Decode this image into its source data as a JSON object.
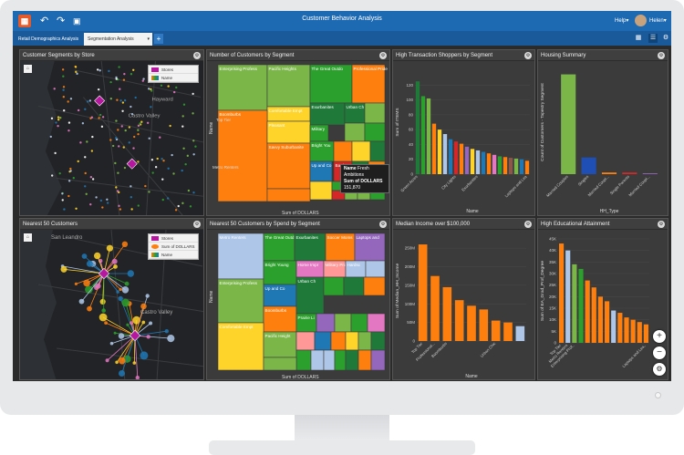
{
  "app": {
    "title": "Customer Behavior Analysis",
    "help_label": "Help",
    "user_label": "Helen",
    "accent": "#1d6ab3"
  },
  "tabs": [
    {
      "label": "Retail Demographics Analysis"
    },
    {
      "label": "Segmentation Analysis",
      "active": true
    }
  ],
  "panels": {
    "p1": {
      "title": "Customer Segments by Store",
      "legend": [
        "Stores",
        "Name"
      ],
      "place_labels": [
        "Hayward",
        "Castro Valley"
      ]
    },
    "p2": {
      "title": "Number of Customers by Segment",
      "ylabel": "Name",
      "xlabel": "Sum of DOLLARS"
    },
    "p3": {
      "title": "High Transaction Shoppers by Segment",
      "ylabel": "Sum of ITEMS",
      "xlabel": "Name"
    },
    "p4": {
      "title": "Housing Summary",
      "ylabel": "Count of Customers - Tapestry Segment",
      "xlabel": "HH_Type"
    },
    "p5": {
      "title": "Nearest 50 Customers",
      "legend": [
        "Stores",
        "Sum of DOLLARS",
        "Name"
      ],
      "place_labels": [
        "San Leandro",
        "Castro Valley"
      ]
    },
    "p6": {
      "title": "Nearest 50 Customers by Spend by Segment",
      "ylabel": "Name",
      "xlabel": "Sum of DOLLARS"
    },
    "p7": {
      "title": "Median Income over $100,000",
      "ylabel": "Sum of Median_HH_Income",
      "xlabel": "Name"
    },
    "p8": {
      "title": "High Educational Attainment",
      "ylabel": "Sum of EA_Grad_Prof_Degree"
    }
  },
  "tooltip": {
    "name_label": "Name",
    "name_value": "Fresh Ambitions",
    "sum_label": "Sum of DOLLARS",
    "sum_value": "151,870"
  },
  "chart_data": [
    {
      "type": "heatmap",
      "title": "Number of Customers by Segment",
      "xlabel": "Sum of DOLLARS",
      "ylabel": "Name",
      "row_labels": [
        "Top Tier",
        "Metro Renters"
      ],
      "cells": [
        {
          "label": "Enterprising Profess",
          "color": "#7ab648"
        },
        {
          "label": "Pacific Heights",
          "color": "#7ab648"
        },
        {
          "label": "The Great Outdo",
          "color": "#2ca02c"
        },
        {
          "label": "Professional Pride",
          "color": "#ff7f0e"
        },
        {
          "label": "Comfortable Empt",
          "color": "#ffd42a"
        },
        {
          "label": "Exurbanites",
          "color": "#1f7a3a"
        },
        {
          "label": "Urban Ch",
          "color": "#1f7a3a"
        },
        {
          "label": "Boomburbs",
          "color": "#ff7f0e"
        },
        {
          "label": "Pleasant",
          "color": "#ffd42a"
        },
        {
          "label": "Military",
          "color": "#2ca02c"
        },
        {
          "label": "Savvy Suburbanite",
          "color": "#ff7f0e"
        },
        {
          "label": "Bright You",
          "color": "#2ca02c"
        },
        {
          "label": "Up and Co",
          "color": "#1f77b4"
        },
        {
          "label": "Barrios",
          "color": "#d62728"
        }
      ]
    },
    {
      "type": "bar",
      "title": "High Transaction Shoppers by Segment",
      "xlabel": "Name",
      "ylabel": "Sum of ITEMS",
      "categories": [
        "Green Acres",
        "",
        "",
        "",
        "",
        "",
        "",
        "City Lights",
        "",
        "",
        "",
        "Exurbanites",
        "",
        "",
        "",
        "",
        "",
        "",
        "",
        "",
        "Laptops and Lea"
      ],
      "values": [
        125,
        105,
        102,
        68,
        60,
        54,
        47,
        44,
        41,
        37,
        34,
        32,
        30,
        28,
        26,
        24,
        23,
        22,
        21,
        20,
        18
      ],
      "colors": [
        "#1f7a3a",
        "#2ca02c",
        "#7ab648",
        "#ff7f0e",
        "#ffd42a",
        "#aec7e8",
        "#1f77b4",
        "#d62728",
        "#ff7f0e",
        "#9467bd",
        "#ffd42a",
        "#aec7e8",
        "#1f77b4",
        "#ff7f0e",
        "#e377c2",
        "#2ca02c",
        "#ff7f0e",
        "#8c564b",
        "#7ab648",
        "#1f77b4",
        "#ff7f0e"
      ],
      "ylim": [
        0,
        140
      ],
      "yticks": [
        0,
        20,
        40,
        60,
        80,
        100,
        120
      ]
    },
    {
      "type": "bar",
      "title": "Housing Summary",
      "xlabel": "HH_Type",
      "ylabel": "Count of Customers - Tapestry Segment",
      "categories": [
        "Married Couples",
        "Singles",
        "Married Coupl...",
        "Single Parents",
        "Married Coupl..."
      ],
      "values": [
        12,
        2,
        0.2,
        0.2,
        0.1
      ],
      "colors": [
        "#7ab648",
        "#1f4eb4",
        "#ff7f0e",
        "#d62728",
        "#9467bd"
      ],
      "ylim": [
        0,
        12.5
      ]
    },
    {
      "type": "heatmap",
      "title": "Nearest 50 Customers by Spend by Segment",
      "xlabel": "Sum of DOLLARS",
      "ylabel": "Name",
      "cells": [
        {
          "label": "Metro Renters",
          "color": "#aec7e8"
        },
        {
          "label": "The Great Outd",
          "color": "#2ca02c"
        },
        {
          "label": "Exurbanites",
          "color": "#1f7a3a"
        },
        {
          "label": "Soccer Moms",
          "color": "#ff7f0e"
        },
        {
          "label": "Laptops and",
          "color": "#9467bd"
        },
        {
          "label": "Enterprising Profess",
          "color": "#7ab648"
        },
        {
          "label": "Bright Young",
          "color": "#2ca02c"
        },
        {
          "label": "Home Impr",
          "color": "#e377c2"
        },
        {
          "label": "Military Pro",
          "color": "#ff9896"
        },
        {
          "label": "Up and Co",
          "color": "#1f77b4"
        },
        {
          "label": "Boomburbs",
          "color": "#ff7f0e"
        },
        {
          "label": "Comfortable Empt",
          "color": "#ffd42a"
        },
        {
          "label": "Pacific Height",
          "color": "#7ab648"
        },
        {
          "label": "Urban Ch",
          "color": "#1f7a3a"
        },
        {
          "label": "Prairie Li",
          "color": "#2ca02c"
        },
        {
          "label": "Hardsc",
          "color": "#aec7e8"
        }
      ]
    },
    {
      "type": "bar",
      "title": "Median Income over $100,000",
      "xlabel": "Name",
      "ylabel": "Sum of Median_HH_Income",
      "categories": [
        "Top Tier",
        "Professional...",
        "Boomburbs",
        "",
        "",
        "",
        "Urban Chic",
        "",
        ""
      ],
      "values": [
        260000,
        175000,
        145000,
        110000,
        95000,
        85000,
        55000,
        50000,
        40000
      ],
      "colors": [
        "#ff7f0e",
        "#ff7f0e",
        "#ff7f0e",
        "#ff7f0e",
        "#ff7f0e",
        "#ff7f0e",
        "#ff7f0e",
        "#ff7f0e",
        "#aec7e8"
      ],
      "ylim": [
        0,
        270000
      ],
      "yticklabels": [
        "0",
        "50M",
        "100M",
        "150M",
        "200M",
        "250M"
      ],
      "yticks": [
        0,
        50000,
        100000,
        150000,
        200000,
        250000
      ]
    },
    {
      "type": "bar",
      "title": "High Educational Attainment",
      "xlabel": "",
      "ylabel": "Sum of EA_Grad_Prof_Degree",
      "categories": [
        "Top Tier",
        "Metro Renters",
        "Enterprising Prof..",
        "",
        "",
        "",
        "",
        "",
        "",
        "",
        "",
        "",
        "",
        "Laptops and Lea.."
      ],
      "values": [
        43,
        40,
        34,
        32,
        27,
        24,
        20,
        18,
        14,
        13,
        11,
        10,
        9,
        8
      ],
      "colors": [
        "#ff7f0e",
        "#aec7e8",
        "#7ab648",
        "#2ca02c",
        "#ff7f0e",
        "#ff7f0e",
        "#ff7f0e",
        "#ff7f0e",
        "#aec7e8",
        "#ff7f0e",
        "#ff7f0e",
        "#ff7f0e",
        "#ff7f0e",
        "#ff7f0e"
      ],
      "ylim": [
        0,
        45
      ],
      "yticks": [
        0,
        5,
        10,
        15,
        20,
        25,
        30,
        35,
        40,
        45
      ],
      "yticklabels": [
        "0",
        "5K",
        "10K",
        "15K",
        "20K",
        "25K",
        "30K",
        "35K",
        "40K",
        "45K"
      ]
    }
  ]
}
